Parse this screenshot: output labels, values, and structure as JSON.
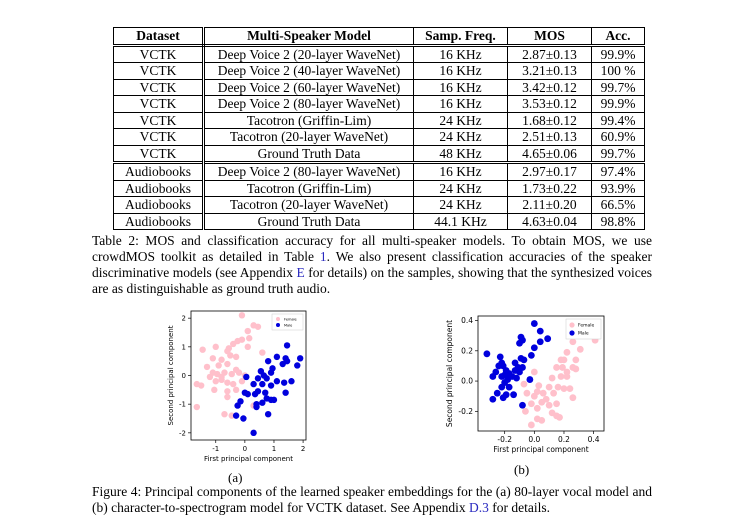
{
  "table": {
    "headers": [
      "Dataset",
      "Multi-Speaker Model",
      "Samp. Freq.",
      "MOS",
      "Acc."
    ],
    "rows": [
      [
        "VCTK",
        "Deep Voice 2 (20-layer WaveNet)",
        "16 KHz",
        "2.87±0.13",
        "99.9%"
      ],
      [
        "VCTK",
        "Deep Voice 2 (40-layer WaveNet)",
        "16 KHz",
        "3.21±0.13",
        "100 %"
      ],
      [
        "VCTK",
        "Deep Voice 2 (60-layer WaveNet)",
        "16 KHz",
        "3.42±0.12",
        "99.7%"
      ],
      [
        "VCTK",
        "Deep Voice 2 (80-layer WaveNet)",
        "16 KHz",
        "3.53±0.12",
        "99.9%"
      ],
      [
        "VCTK",
        "Tacotron (Griffin-Lim)",
        "24 KHz",
        "1.68±0.12",
        "99.4%"
      ],
      [
        "VCTK",
        "Tacotron (20-layer WaveNet)",
        "24 KHz",
        "2.51±0.13",
        "60.9%"
      ],
      [
        "VCTK",
        "Ground Truth Data",
        "48 KHz",
        "4.65±0.06",
        "99.7%"
      ],
      [
        "Audiobooks",
        "Deep Voice 2 (80-layer WaveNet)",
        "16 KHz",
        "2.97±0.17",
        "97.4%"
      ],
      [
        "Audiobooks",
        "Tacotron (Griffin-Lim)",
        "24 KHz",
        "1.73±0.22",
        "93.9%"
      ],
      [
        "Audiobooks",
        "Tacotron (20-layer WaveNet)",
        "24 KHz",
        "2.11±0.20",
        "66.5%"
      ],
      [
        "Audiobooks",
        "Ground Truth Data",
        "44.1 KHz",
        "4.63±0.04",
        "98.8%"
      ]
    ]
  },
  "table_caption": {
    "a": "Table 2: MOS and classification accuracy for all multi-speaker models. To obtain MOS, we use crowdMOS toolkit as detailed in Table ",
    "ref1": "1",
    "b": ". We also present classification accuracies of the speaker discriminative models (see Appendix ",
    "ref2": "E",
    "c": " for details) on the samples, showing that the synthesized voices are as distinguishable as ground truth audio."
  },
  "figure_caption": {
    "a": "Figure 4: Principal components of the learned speaker embeddings for the (a) 80-layer vocal model and (b) character-to-spectrogram model for VCTK dataset. See Appendix ",
    "ref": "D.3",
    "b": " for details."
  },
  "chart_data": [
    {
      "type": "scatter",
      "sublabel": "(a)",
      "xlabel": "First principal component",
      "ylabel": "Second principal component",
      "xlim": [
        -1.85,
        2.1
      ],
      "ylim": [
        -2.25,
        2.25
      ],
      "xticks": [
        -1,
        0,
        1,
        2
      ],
      "yticks": [
        -2,
        -1,
        0,
        1,
        2
      ],
      "legend": "top-right",
      "series": [
        {
          "name": "Female",
          "color": "#ffc0cb",
          "points": [
            [
              -0.1,
              2.1
            ],
            [
              0.3,
              1.75
            ],
            [
              0.45,
              1.7
            ],
            [
              0.1,
              1.55
            ],
            [
              0.15,
              1.3
            ],
            [
              -0.1,
              1.25
            ],
            [
              -0.25,
              1.2
            ],
            [
              -0.4,
              1.1
            ],
            [
              -1.45,
              0.9
            ],
            [
              -1.0,
              1.0
            ],
            [
              -0.55,
              0.95
            ],
            [
              -0.6,
              0.85
            ],
            [
              0.1,
              1.0
            ],
            [
              -0.5,
              0.7
            ],
            [
              -0.3,
              0.65
            ],
            [
              -1.1,
              0.6
            ],
            [
              -0.8,
              0.55
            ],
            [
              0.6,
              0.8
            ],
            [
              -1.3,
              0.3
            ],
            [
              -0.9,
              0.35
            ],
            [
              -0.6,
              0.4
            ],
            [
              -0.3,
              0.2
            ],
            [
              -1.1,
              0.1
            ],
            [
              -0.95,
              0.05
            ],
            [
              -0.7,
              0.1
            ],
            [
              -0.45,
              0.05
            ],
            [
              -0.2,
              0.1
            ],
            [
              -1.2,
              -0.05
            ],
            [
              -1.0,
              -0.2
            ],
            [
              -0.8,
              -0.15
            ],
            [
              -0.6,
              -0.25
            ],
            [
              -0.4,
              -0.3
            ],
            [
              -0.1,
              -0.2
            ],
            [
              -1.65,
              -0.3
            ],
            [
              -1.5,
              -0.35
            ],
            [
              -1.05,
              -0.5
            ],
            [
              -0.6,
              -0.55
            ],
            [
              -0.6,
              -0.75
            ],
            [
              -0.3,
              -0.5
            ],
            [
              -1.65,
              -1.1
            ],
            [
              -0.7,
              -1.35
            ],
            [
              -0.45,
              -1.4
            ],
            [
              0.3,
              -1.05
            ],
            [
              0.0,
              0.0
            ],
            [
              -0.8,
              -0.05
            ]
          ]
        },
        {
          "name": "Male",
          "color": "#0000dd",
          "points": [
            [
              1.45,
              1.05
            ],
            [
              1.1,
              0.65
            ],
            [
              1.4,
              0.6
            ],
            [
              1.9,
              0.6
            ],
            [
              1.45,
              0.5
            ],
            [
              0.8,
              0.5
            ],
            [
              1.3,
              0.4
            ],
            [
              1.8,
              0.35
            ],
            [
              0.55,
              0.15
            ],
            [
              0.95,
              0.25
            ],
            [
              0.9,
              0.1
            ],
            [
              0.65,
              0.0
            ],
            [
              1.6,
              -0.2
            ],
            [
              0.75,
              -0.1
            ],
            [
              0.45,
              -0.1
            ],
            [
              1.1,
              -0.2
            ],
            [
              1.35,
              -0.25
            ],
            [
              0.3,
              -0.3
            ],
            [
              0.6,
              -0.3
            ],
            [
              0.9,
              -0.35
            ],
            [
              0.05,
              -0.05
            ],
            [
              0.45,
              -0.55
            ],
            [
              0.0,
              -0.6
            ],
            [
              0.1,
              -0.65
            ],
            [
              0.35,
              -0.65
            ],
            [
              0.7,
              -0.6
            ],
            [
              1.4,
              -0.6
            ],
            [
              0.75,
              -0.8
            ],
            [
              0.9,
              -0.85
            ],
            [
              0.6,
              -0.95
            ],
            [
              1.0,
              -0.85
            ],
            [
              -0.15,
              -0.9
            ],
            [
              0.4,
              -1.0
            ],
            [
              0.4,
              -1.1
            ],
            [
              -0.25,
              -1.05
            ],
            [
              0.8,
              -1.35
            ],
            [
              -0.3,
              -1.4
            ],
            [
              -0.05,
              -1.5
            ],
            [
              0.3,
              -2.0
            ]
          ]
        }
      ]
    },
    {
      "type": "scatter",
      "sublabel": "(b)",
      "xlabel": "First principal component",
      "ylabel": "Second principal component",
      "xlim": [
        -0.38,
        0.47
      ],
      "ylim": [
        -0.33,
        0.43
      ],
      "xticks": [
        -0.2,
        0.0,
        0.2,
        0.4
      ],
      "yticks": [
        -0.2,
        0.0,
        0.2,
        0.4
      ],
      "legend": "top-right",
      "series": [
        {
          "name": "Female",
          "color": "#ffc0cb",
          "points": [
            [
              0.41,
              0.27
            ],
            [
              0.26,
              0.26
            ],
            [
              0.31,
              0.21
            ],
            [
              0.22,
              0.19
            ],
            [
              0.18,
              0.14
            ],
            [
              0.2,
              0.14
            ],
            [
              0.28,
              0.14
            ],
            [
              0.15,
              0.09
            ],
            [
              0.19,
              0.09
            ],
            [
              0.26,
              0.09
            ],
            [
              0.28,
              0.08
            ],
            [
              0.0,
              0.06
            ],
            [
              0.22,
              0.06
            ],
            [
              0.18,
              0.03
            ],
            [
              0.22,
              0.03
            ],
            [
              0.12,
              0.02
            ],
            [
              -0.07,
              -0.02
            ],
            [
              0.03,
              -0.03
            ],
            [
              0.1,
              -0.04
            ],
            [
              0.16,
              -0.04
            ],
            [
              0.2,
              -0.05
            ],
            [
              0.24,
              -0.05
            ],
            [
              -0.05,
              -0.08
            ],
            [
              0.02,
              -0.07
            ],
            [
              0.06,
              -0.08
            ],
            [
              0.13,
              -0.08
            ],
            [
              0.0,
              -0.1
            ],
            [
              0.08,
              -0.12
            ],
            [
              0.26,
              -0.11
            ],
            [
              0.05,
              -0.14
            ],
            [
              0.15,
              -0.15
            ],
            [
              -0.02,
              -0.15
            ],
            [
              0.1,
              -0.16
            ],
            [
              0.02,
              -0.18
            ],
            [
              -0.06,
              -0.2
            ],
            [
              0.12,
              -0.21
            ],
            [
              0.15,
              -0.23
            ],
            [
              0.17,
              -0.24
            ],
            [
              0.02,
              -0.25
            ],
            [
              0.05,
              -0.26
            ],
            [
              -0.02,
              -0.29
            ]
          ]
        },
        {
          "name": "Male",
          "color": "#0000dd",
          "points": [
            [
              0.0,
              0.38
            ],
            [
              0.04,
              0.33
            ],
            [
              -0.09,
              0.29
            ],
            [
              -0.08,
              0.27
            ],
            [
              0.09,
              0.28
            ],
            [
              0.04,
              0.26
            ],
            [
              -0.1,
              0.25
            ],
            [
              0.0,
              0.22
            ],
            [
              -0.32,
              0.18
            ],
            [
              -0.02,
              0.17
            ],
            [
              -0.23,
              0.16
            ],
            [
              -0.09,
              0.15
            ],
            [
              -0.07,
              0.14
            ],
            [
              -0.22,
              0.12
            ],
            [
              -0.13,
              0.12
            ],
            [
              -0.21,
              0.1
            ],
            [
              -0.24,
              0.1
            ],
            [
              -0.11,
              0.09
            ],
            [
              -0.08,
              0.09
            ],
            [
              -0.19,
              0.07
            ],
            [
              -0.13,
              0.07
            ],
            [
              -0.26,
              0.06
            ],
            [
              -0.17,
              0.05
            ],
            [
              -0.1,
              0.06
            ],
            [
              -0.2,
              0.04
            ],
            [
              -0.15,
              0.03
            ],
            [
              -0.28,
              0.03
            ],
            [
              -0.22,
              0.03
            ],
            [
              -0.18,
              0.01
            ],
            [
              -0.12,
              0.02
            ],
            [
              -0.03,
              0.01
            ],
            [
              -0.2,
              -0.01
            ],
            [
              -0.22,
              -0.04
            ],
            [
              -0.17,
              -0.04
            ],
            [
              -0.25,
              -0.08
            ],
            [
              -0.19,
              -0.09
            ],
            [
              -0.14,
              -0.09
            ],
            [
              -0.21,
              -0.11
            ],
            [
              -0.28,
              -0.12
            ],
            [
              -0.08,
              -0.16
            ]
          ]
        }
      ]
    }
  ]
}
